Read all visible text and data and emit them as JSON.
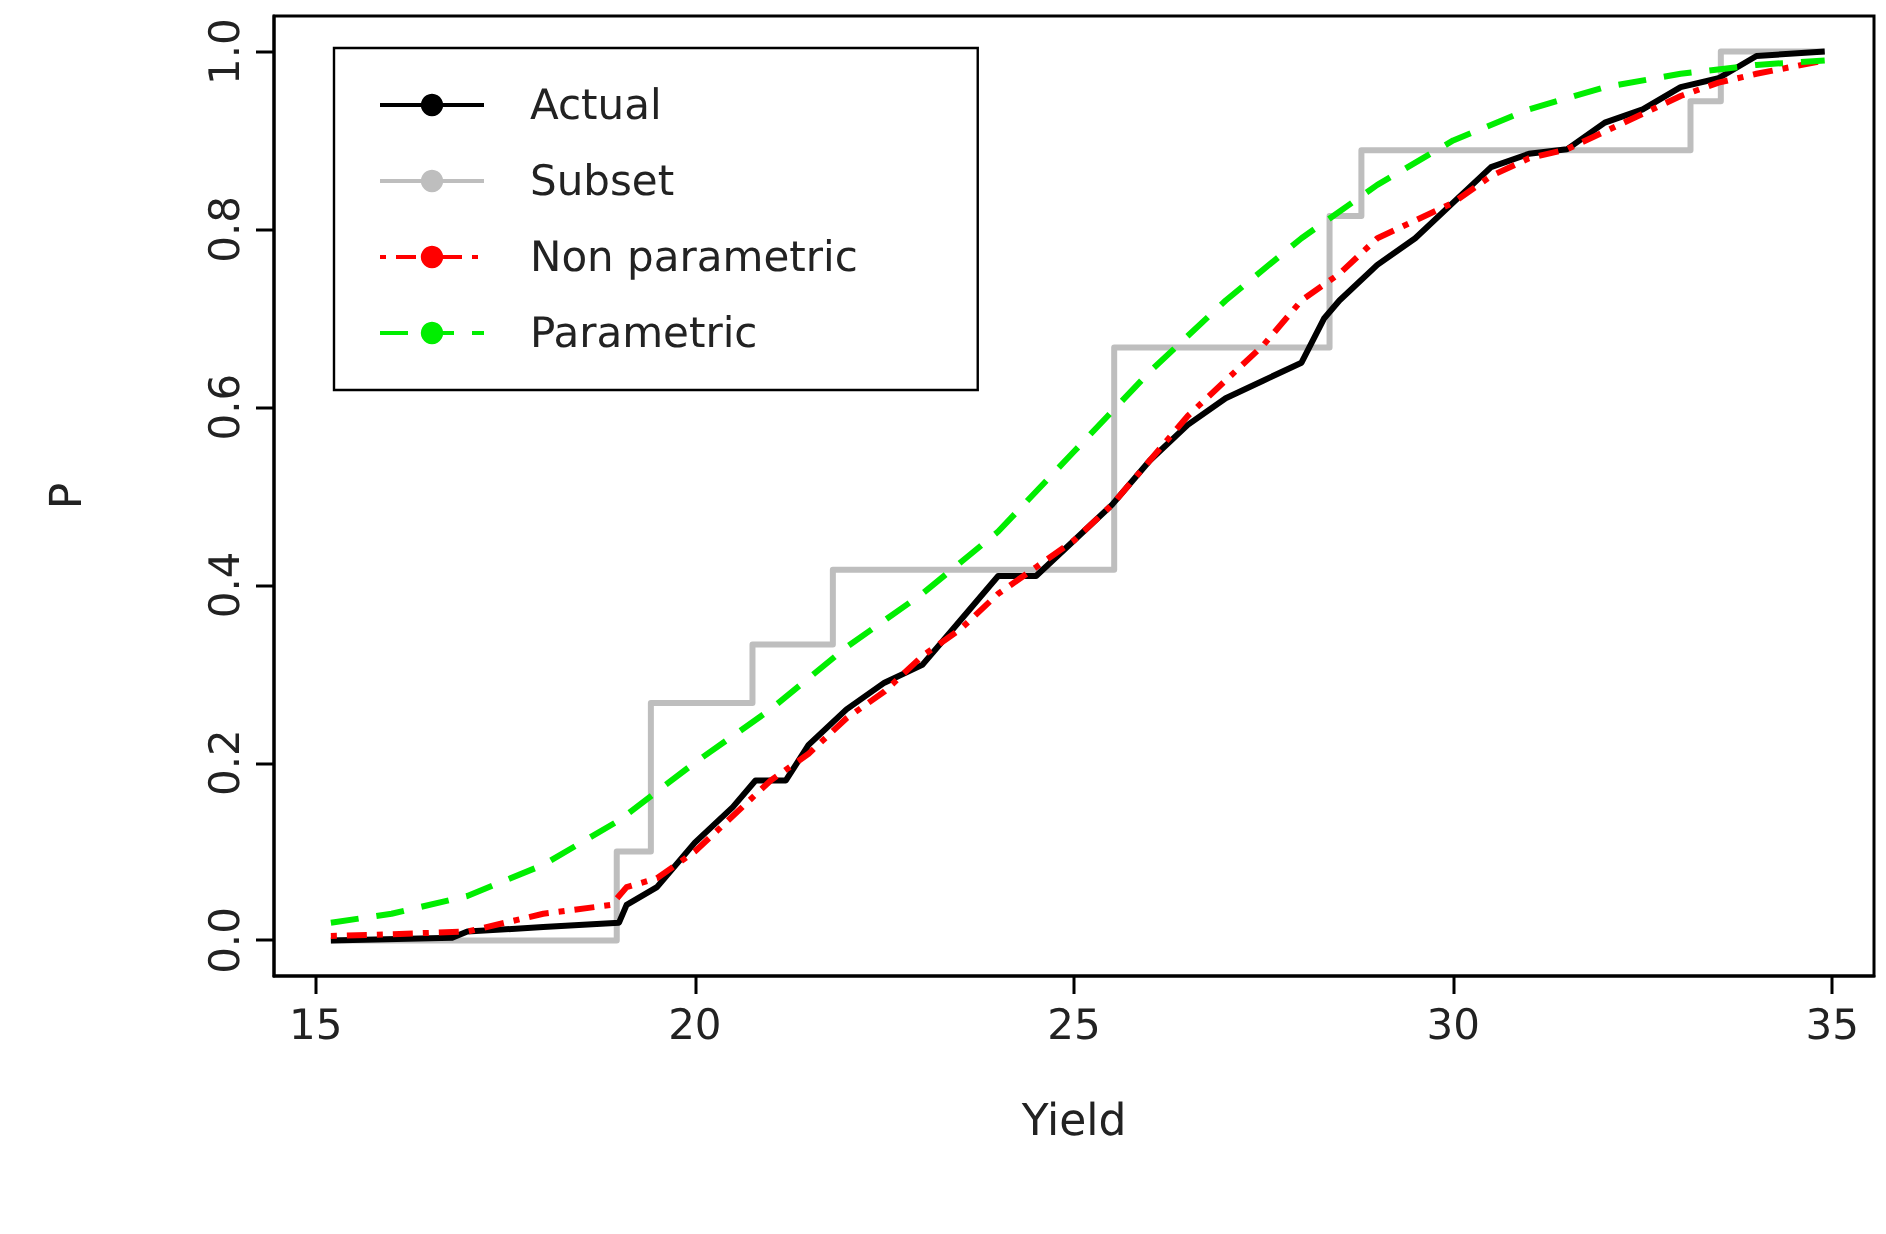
{
  "chart_data": {
    "type": "line",
    "xlabel": "Yield",
    "ylabel": "P",
    "xlim": [
      14.45,
      35.55
    ],
    "ylim": [
      -0.04,
      1.04
    ],
    "xticks": [
      15,
      20,
      25,
      30,
      35
    ],
    "yticks": [
      {
        "value": 0,
        "label": "0.0"
      },
      {
        "value": 0.2,
        "label": "0.2"
      },
      {
        "value": 0.4,
        "label": "0.4"
      },
      {
        "value": 0.6,
        "label": "0.6"
      },
      {
        "value": 0.8,
        "label": "0.8"
      },
      {
        "value": 1,
        "label": "1.0"
      }
    ],
    "grid": false,
    "legend": "top left",
    "marker": "none",
    "series": [
      {
        "name": "Actual",
        "color": "#000000",
        "line_style": "solid",
        "x": [
          15.2,
          16.8,
          17,
          18,
          19,
          19.1,
          19.5,
          20,
          20.5,
          20.8,
          21.2,
          21.5,
          22,
          22.5,
          23,
          23.5,
          24,
          24.5,
          25,
          25.5,
          26,
          26.5,
          27,
          27.5,
          28,
          28.3,
          28.5,
          29,
          29.5,
          30,
          30.5,
          31,
          31.5,
          32,
          32.5,
          33,
          33.5,
          34,
          34.9
        ],
        "values": [
          0,
          0.003,
          0.01,
          0.015,
          0.02,
          0.04,
          0.06,
          0.11,
          0.15,
          0.18,
          0.18,
          0.22,
          0.26,
          0.29,
          0.31,
          0.36,
          0.41,
          0.41,
          0.45,
          0.49,
          0.54,
          0.58,
          0.61,
          0.63,
          0.65,
          0.7,
          0.72,
          0.76,
          0.79,
          0.83,
          0.87,
          0.885,
          0.89,
          0.92,
          0.935,
          0.96,
          0.97,
          0.995,
          1
        ]
      },
      {
        "name": "Subset",
        "color": "#bebebe",
        "type": "step",
        "line_style": "solid",
        "x": [
          15.2,
          18.97,
          19.42,
          20.76,
          21.82,
          25.53,
          28.37,
          28.79,
          33.13,
          33.53,
          34.9
        ],
        "values": [
          0,
          0.1,
          0.267,
          0.333,
          0.417,
          0.667,
          0.815,
          0.889,
          0.944,
          1,
          1
        ]
      },
      {
        "name": "Non parametric",
        "color": "#ff0000",
        "line_style": "dotted",
        "x": [
          15.2,
          16,
          17,
          18,
          18.9,
          19.1,
          19.5,
          20,
          20.5,
          21,
          21.5,
          22,
          22.5,
          23,
          23.5,
          24,
          24.5,
          25,
          25.5,
          26,
          26.5,
          27,
          27.5,
          28,
          28.5,
          29,
          29.5,
          30,
          30.5,
          31,
          31.5,
          32,
          32.5,
          33,
          33.5,
          34,
          34.9
        ],
        "values": [
          0.005,
          0.007,
          0.01,
          0.03,
          0.04,
          0.06,
          0.07,
          0.1,
          0.14,
          0.18,
          0.21,
          0.25,
          0.28,
          0.32,
          0.35,
          0.39,
          0.42,
          0.45,
          0.49,
          0.54,
          0.59,
          0.63,
          0.67,
          0.72,
          0.75,
          0.79,
          0.81,
          0.83,
          0.86,
          0.88,
          0.89,
          0.91,
          0.93,
          0.95,
          0.965,
          0.975,
          0.99
        ]
      },
      {
        "name": "Parametric",
        "color": "#00ee00",
        "line_style": "dashed",
        "x": [
          15.2,
          16,
          17,
          18,
          19,
          20,
          21,
          22,
          23,
          24,
          25,
          26,
          27,
          28,
          29,
          30,
          31,
          32,
          33,
          34,
          34.9
        ],
        "values": [
          0.02,
          0.03,
          0.05,
          0.085,
          0.135,
          0.2,
          0.26,
          0.33,
          0.39,
          0.46,
          0.55,
          0.64,
          0.72,
          0.79,
          0.85,
          0.9,
          0.935,
          0.96,
          0.975,
          0.985,
          0.99
        ]
      }
    ]
  }
}
